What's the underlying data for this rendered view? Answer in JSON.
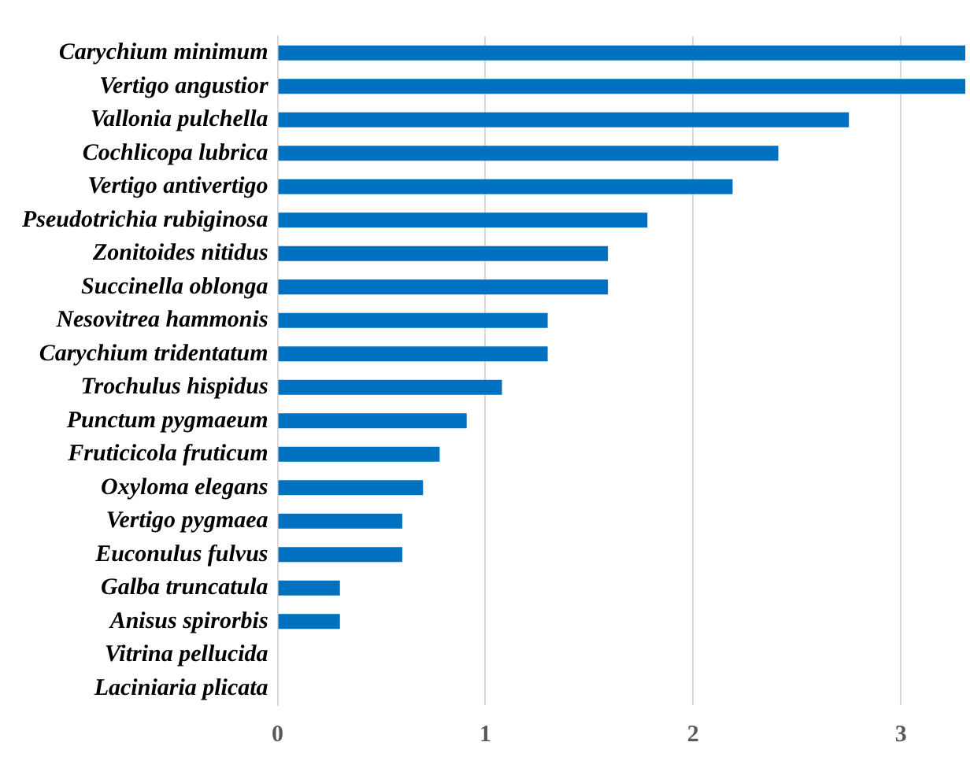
{
  "chart_data": {
    "type": "bar",
    "orientation": "horizontal",
    "categories": [
      "Carychium minimum",
      "Vertigo angustior",
      "Vallonia pulchella",
      "Cochlicopa lubrica",
      "Vertigo antivertigo",
      "Pseudotrichia rubiginosa",
      "Zonitoides nitidus",
      "Succinella oblonga",
      "Nesovitrea hammonis",
      "Carychium tridentatum",
      "Trochulus hispidus",
      "Punctum pygmaeum",
      "Fruticicola fruticum",
      "Oxyloma elegans",
      "Vertigo pygmaea",
      "Euconulus fulvus",
      "Galba truncatula",
      "Anisus spirorbis",
      "Vitrina pellucida",
      "Laciniaria plicata"
    ],
    "values": [
      3.31,
      3.31,
      2.75,
      2.41,
      2.19,
      1.78,
      1.59,
      1.59,
      1.3,
      1.3,
      1.08,
      0.91,
      0.78,
      0.7,
      0.6,
      0.6,
      0.3,
      0.3,
      0,
      0
    ],
    "color": "#0070c0",
    "xlim": [
      0,
      3.31
    ],
    "xticks": [
      0,
      1,
      2,
      3
    ],
    "grid": "x",
    "legend": false
  }
}
